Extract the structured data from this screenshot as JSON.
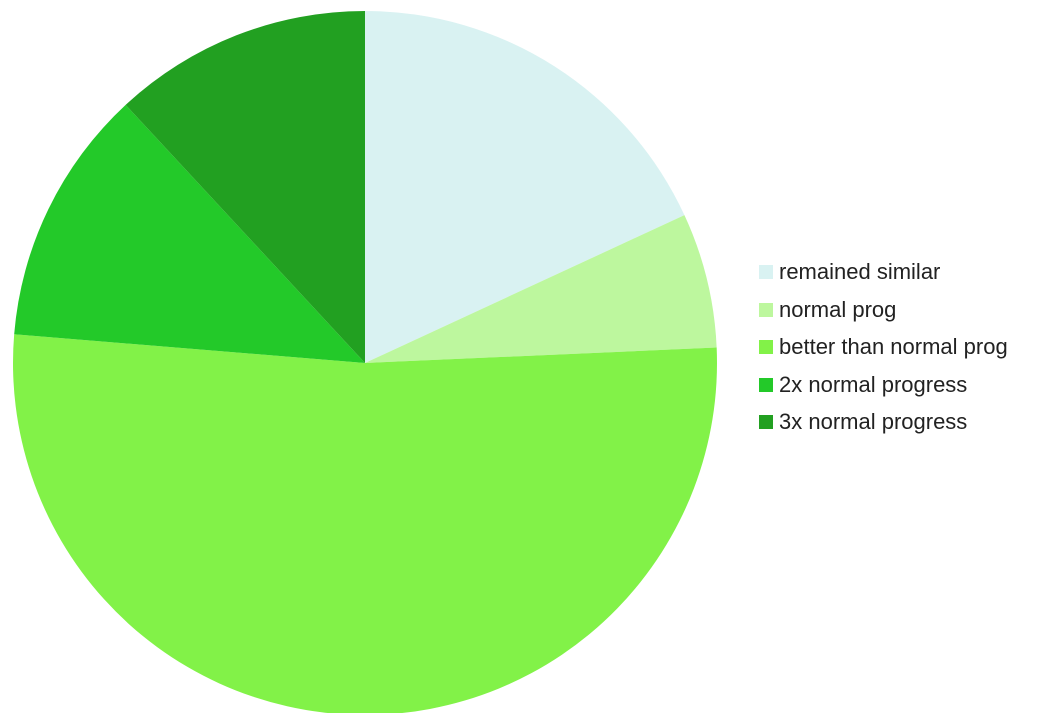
{
  "chart_data": {
    "type": "pie",
    "title": "",
    "start_angle_deg": 0,
    "direction": "clockwise",
    "legend_position": "right",
    "slices": [
      {
        "label": "remained similar",
        "value": 18.1,
        "color": "#D9F2F2"
      },
      {
        "label": "normal prog",
        "value": 6.2,
        "color": "#BDF79E"
      },
      {
        "label": "better than normal prog",
        "value": 52.0,
        "color": "#82F248"
      },
      {
        "label": "2x normal progress",
        "value": 11.8,
        "color": "#23C929"
      },
      {
        "label": "3x normal progress",
        "value": 11.9,
        "color": "#22A021"
      }
    ]
  }
}
